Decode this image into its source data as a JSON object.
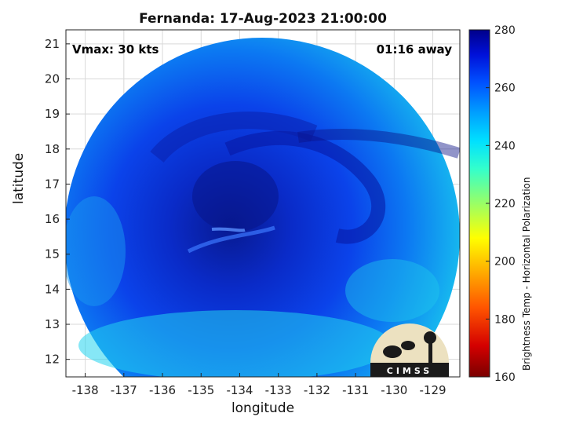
{
  "title": "Fernanda: 17-Aug-2023 21:00:00",
  "annotations": {
    "vmax": "Vmax: 30 kts",
    "away": "01:16 away"
  },
  "axes": {
    "xlabel": "longitude",
    "ylabel": "latitude",
    "x_ticks": [
      "-138",
      "-137",
      "-136",
      "-135",
      "-134",
      "-133",
      "-132",
      "-131",
      "-130",
      "-129"
    ],
    "y_ticks": [
      "21",
      "20",
      "19",
      "18",
      "17",
      "16",
      "15",
      "14",
      "13",
      "12"
    ],
    "xlim": [
      -138.5,
      -128.3
    ],
    "ylim": [
      11.5,
      21.4
    ],
    "grid": true
  },
  "colorbar": {
    "label": "Brightness Temp - Horizontal Polarization",
    "ticks": [
      "280",
      "260",
      "240",
      "220",
      "200",
      "180",
      "160"
    ],
    "range": [
      160,
      280
    ],
    "colors": [
      "#7a0000",
      "#d40000",
      "#ff5500",
      "#ffaa00",
      "#ffff00",
      "#aaff55",
      "#55ffaa",
      "#00e5ff",
      "#00a8ff",
      "#0055ff",
      "#0010e0",
      "#00008a"
    ]
  },
  "logo": {
    "text": "CIMSS"
  },
  "map_colors": {
    "cold_core": "#0a1a9a",
    "mid": "#0a3ee8",
    "warm_edge": "#18c6f0"
  }
}
